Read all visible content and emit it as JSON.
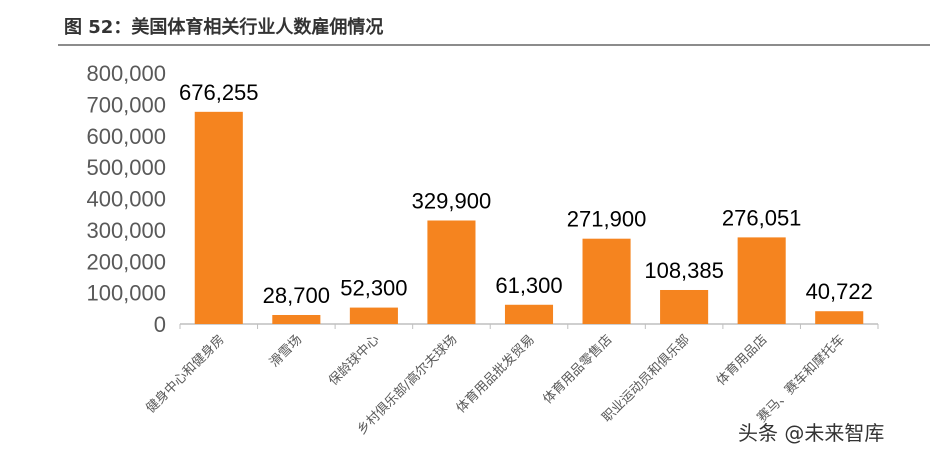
{
  "figure_title": "图 52：美国体育相关行业人数雇佣情况",
  "watermark": "头条 @未来智库",
  "colors": {
    "bar": "#F5841F",
    "axis": "#bfbfbf",
    "text": "#000000",
    "tick": "#595959"
  },
  "chart_data": {
    "type": "bar",
    "title": "",
    "xlabel": "",
    "ylabel": "",
    "ylim": [
      0,
      800000
    ],
    "yticks": [
      0,
      100000,
      200000,
      300000,
      400000,
      500000,
      600000,
      700000,
      800000
    ],
    "grid": false,
    "categories": [
      "健身中心和健身房",
      "滑雪场",
      "保龄球中心",
      "乡村俱乐部/高尔夫球场",
      "体育用品批发贸易",
      "体育用品零售店",
      "职业运动员和俱乐部",
      "体育用品店",
      "赛马、赛车和摩托车"
    ],
    "values": [
      676255,
      28700,
      52300,
      329900,
      61300,
      271900,
      108385,
      276051,
      40722
    ]
  }
}
